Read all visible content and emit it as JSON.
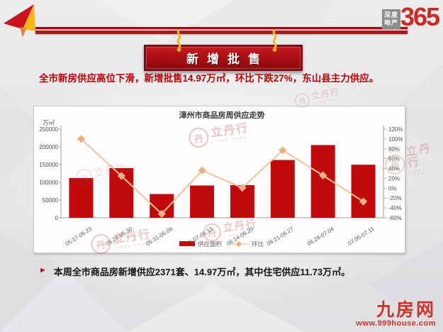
{
  "brand": {
    "box_top": "深度",
    "box_bottom": "地产",
    "number": "365"
  },
  "banner": {
    "title": "新增批售"
  },
  "headline": "全市新房供应高位下滑，新增批售14.97万㎡，环比下跌27%，东山县主力供应。",
  "chart_data": {
    "type": "bar",
    "title": "漳州市商品房周供应走势",
    "unit_label": "万㎡",
    "categories": [
      "05.17-05.23",
      "05.24-05.30",
      "05.31-06.06",
      "06.07-06.13",
      "06.14-06.20",
      "06.21-06.27",
      "06.28-07.04",
      "07.05-07.11"
    ],
    "series": [
      {
        "name": "供应面积",
        "type": "bar",
        "axis": "left",
        "color": "#c00a0e",
        "values": [
          112000,
          140000,
          67000,
          91000,
          92000,
          163000,
          205000,
          149700
        ]
      },
      {
        "name": "环比",
        "type": "line",
        "axis": "right",
        "color": "#f2c39a",
        "marker_color": "#edb184",
        "values": [
          100,
          25,
          -52,
          36,
          1,
          77,
          26,
          -27
        ]
      }
    ],
    "left_axis": {
      "min": 0,
      "max": 250000,
      "step": 50000
    },
    "right_axis": {
      "min": -60,
      "max": 120,
      "step": 20,
      "suffix": "%"
    },
    "legend_position": "bottom",
    "grid": false
  },
  "summary": {
    "bullet_icon": "►",
    "text": "本周全市商品房新增供应2371套、14.97万㎡，其中住宅供应11.73万㎡。"
  },
  "watermark": {
    "circle_char": "丹",
    "name": "立丹行",
    "latin": "LIDAN HANG"
  },
  "footer": {
    "site_name": "九房网",
    "site_url": "www.999house.com"
  }
}
